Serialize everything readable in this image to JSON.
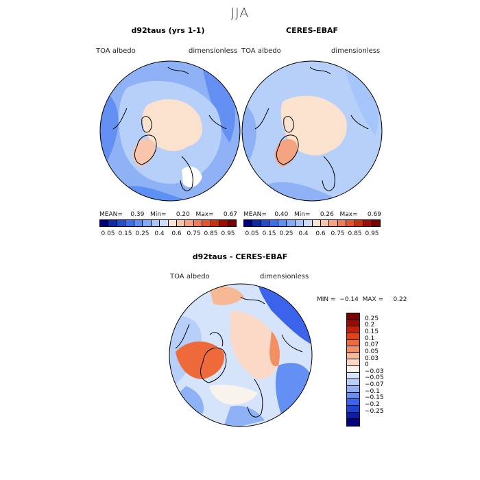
{
  "season_title": "JJA",
  "colors": {
    "abs_palette": [
      "#00007f",
      "#0d2ca4",
      "#1f50d0",
      "#3b70ec",
      "#5c90f4",
      "#80abf8",
      "#a6c6fb",
      "#c9dcfc",
      "#fce4d4",
      "#f8c6ac",
      "#f4a480",
      "#ee7c55",
      "#e2552f",
      "#c8300f",
      "#a00c04",
      "#7a0000"
    ],
    "diff_palette": [
      "#000080",
      "#0a1fa6",
      "#1d42d4",
      "#3b63eb",
      "#6390f2",
      "#8fb2f6",
      "#b7cff9",
      "#d6e4fb",
      "#f9f3ee",
      "#fbd9c6",
      "#f7b896",
      "#f39063",
      "#ee6a3a",
      "#e0421b",
      "#c3200a",
      "#9a0a04",
      "#7a0000"
    ],
    "land": "#fbe2cf",
    "ocean_light": "#b7d0f9",
    "ocean_mid": "#8fb2f6",
    "coast": "#000000"
  },
  "panels": [
    {
      "title": "d92taus (yrs 1-1)",
      "variable": "TOA albedo",
      "units": "dimensionless",
      "mean_label": "MEAN=",
      "mean": "0.39",
      "min_label": "Min=",
      "min": "0.20",
      "max_label": "Max=",
      "max": "0.67"
    },
    {
      "title": "CERES-EBAF",
      "variable": "TOA albedo",
      "units": "dimensionless",
      "mean_label": "MEAN=",
      "mean": "0.40",
      "min_label": "Min=",
      "min": "0.26",
      "max_label": "Max=",
      "max": "0.69"
    }
  ],
  "abs_colorbar_labels": [
    "0.05",
    "0.15",
    "0.25",
    "0.4",
    "0.6",
    "0.75",
    "0.85",
    "0.95"
  ],
  "diff": {
    "title": "d92taus - CERES-EBAF",
    "variable": "TOA albedo",
    "units": "dimensionless",
    "min_label": "MIN =",
    "min": "−0.14",
    "max_label": "MAX =",
    "max": "0.22",
    "colorbar_labels": [
      "0.25",
      "0.2",
      "0.15",
      "0.1",
      "0.07",
      "0.05",
      "0.03",
      "0",
      "−0.03",
      "−0.05",
      "−0.07",
      "−0.1",
      "−0.15",
      "−0.2",
      "−0.25"
    ]
  },
  "chart_data": [
    {
      "type": "heatmap",
      "title": "d92taus (yrs 1-1)",
      "projection": "north polar stereographic",
      "field": "TOA albedo",
      "units": "dimensionless",
      "stats": {
        "mean": 0.39,
        "min": 0.2,
        "max": 0.67
      },
      "contour_levels": [
        0.05,
        0.1,
        0.15,
        0.2,
        0.25,
        0.3,
        0.4,
        0.5,
        0.6,
        0.65,
        0.7,
        0.75,
        0.8,
        0.85,
        0.9,
        0.95
      ]
    },
    {
      "type": "heatmap",
      "title": "CERES-EBAF",
      "projection": "north polar stereographic",
      "field": "TOA albedo",
      "units": "dimensionless",
      "stats": {
        "mean": 0.4,
        "min": 0.26,
        "max": 0.69
      },
      "contour_levels": [
        0.05,
        0.1,
        0.15,
        0.2,
        0.25,
        0.3,
        0.4,
        0.5,
        0.6,
        0.65,
        0.7,
        0.75,
        0.8,
        0.85,
        0.9,
        0.95
      ]
    },
    {
      "type": "heatmap",
      "title": "d92taus - CERES-EBAF",
      "projection": "north polar stereographic",
      "field": "TOA albedo",
      "units": "dimensionless",
      "stats": {
        "min": -0.14,
        "max": 0.22
      },
      "contour_levels": [
        -0.25,
        -0.2,
        -0.15,
        -0.1,
        -0.07,
        -0.05,
        -0.03,
        0,
        0.03,
        0.05,
        0.07,
        0.1,
        0.15,
        0.2,
        0.25
      ]
    }
  ]
}
